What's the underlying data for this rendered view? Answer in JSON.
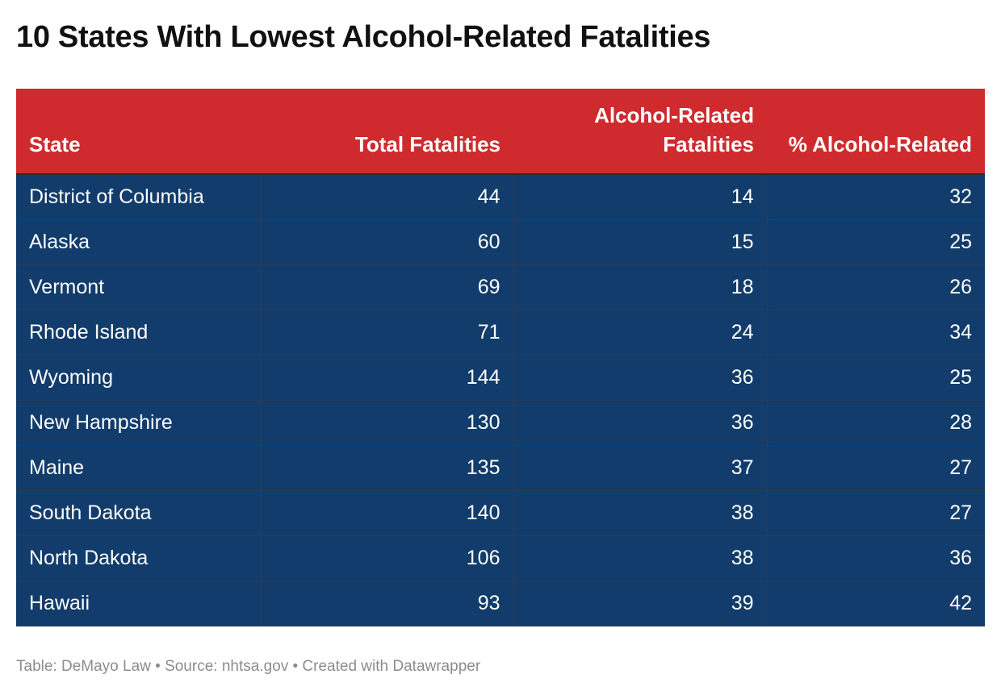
{
  "title": "10 States With Lowest Alcohol-Related Fatalities",
  "colors": {
    "header_bg": "#cf2b2e",
    "row_bg": "#123c6b",
    "text": "#ffffff",
    "footer": "#8c8c8c"
  },
  "footer": {
    "text": "Table: DeMayo Law • Source: nhtsa.gov • Created with Datawrapper"
  },
  "chart_data": {
    "type": "table",
    "title": "10 States With Lowest Alcohol-Related Fatalities",
    "columns": [
      {
        "label": "State",
        "align": "left"
      },
      {
        "label": "Total Fatalities",
        "align": "right"
      },
      {
        "label": "Alcohol-Related Fatalities",
        "align": "right"
      },
      {
        "label": "% Alcohol-Related",
        "align": "right"
      }
    ],
    "rows": [
      [
        "District of Columbia",
        44,
        14,
        32
      ],
      [
        "Alaska",
        60,
        15,
        25
      ],
      [
        "Vermont",
        69,
        18,
        26
      ],
      [
        "Rhode Island",
        71,
        24,
        34
      ],
      [
        "Wyoming",
        144,
        36,
        25
      ],
      [
        "New Hampshire",
        130,
        36,
        28
      ],
      [
        "Maine",
        135,
        37,
        27
      ],
      [
        "South Dakota",
        140,
        38,
        27
      ],
      [
        "North Dakota",
        106,
        38,
        36
      ],
      [
        "Hawaii",
        93,
        39,
        42
      ]
    ]
  }
}
